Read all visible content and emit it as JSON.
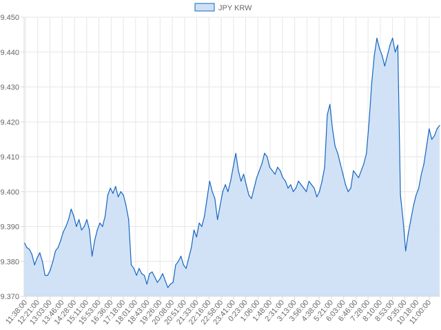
{
  "chart_data": {
    "type": "area",
    "title": "",
    "xlabel": "",
    "ylabel": "",
    "legend": {
      "position": "top-center",
      "entries": [
        "JPY KRW"
      ]
    },
    "grid": true,
    "ylim": [
      9.37,
      9.45
    ],
    "y_ticks": [
      "9.450",
      "9.440",
      "9.430",
      "9.420",
      "9.410",
      "9.400",
      "9.390",
      "9.380",
      "9.370"
    ],
    "x_ticks": [
      "11:38:00",
      "12:21:00",
      "13:03:00",
      "13:46:00",
      "14:28:00",
      "15:11:00",
      "15:53:00",
      "16:36:00",
      "17:18:00",
      "18:01:00",
      "18:43:00",
      "19:26:00",
      "20:08:00",
      "20:51:00",
      "21:33:00",
      "22:16:00",
      "22:58:00",
      "23:41:00",
      "0:23:00",
      "1:06:00",
      "1:48:00",
      "2:31:00",
      "3:13:00",
      "3:56:00",
      "4:38:00",
      "5:21:00",
      "6:03:00",
      "6:46:00",
      "7:28:00",
      "8:10:00",
      "8:53:00",
      "9:35:00",
      "10:18:00",
      "11:00:00"
    ],
    "colors": {
      "line": "#1565c0",
      "fill": "#cfe0f5",
      "grid": "#e6e6e6",
      "axis": "#d9d9d9"
    },
    "series": [
      {
        "name": "JPY KRW",
        "values": [
          9.3855,
          9.384,
          9.3835,
          9.382,
          9.379,
          9.381,
          9.3825,
          9.38,
          9.376,
          9.376,
          9.3775,
          9.38,
          9.383,
          9.384,
          9.386,
          9.3885,
          9.39,
          9.392,
          9.395,
          9.393,
          9.39,
          9.392,
          9.389,
          9.39,
          9.392,
          9.389,
          9.3815,
          9.386,
          9.389,
          9.391,
          9.39,
          9.393,
          9.399,
          9.401,
          9.3995,
          9.4015,
          9.3985,
          9.4,
          9.399,
          9.396,
          9.392,
          9.379,
          9.378,
          9.376,
          9.378,
          9.3765,
          9.376,
          9.3735,
          9.3765,
          9.377,
          9.3755,
          9.374,
          9.375,
          9.3765,
          9.3745,
          9.3725,
          9.3735,
          9.374,
          9.379,
          9.38,
          9.3815,
          9.379,
          9.378,
          9.381,
          9.384,
          9.389,
          9.387,
          9.391,
          9.39,
          9.393,
          9.398,
          9.403,
          9.4,
          9.398,
          9.392,
          9.396,
          9.4,
          9.402,
          9.4,
          9.403,
          9.407,
          9.411,
          9.406,
          9.403,
          9.405,
          9.402,
          9.399,
          9.398,
          9.401,
          9.404,
          9.406,
          9.408,
          9.411,
          9.41,
          9.407,
          9.406,
          9.405,
          9.407,
          9.406,
          9.404,
          9.403,
          9.401,
          9.402,
          9.4,
          9.401,
          9.403,
          9.402,
          9.401,
          9.4,
          9.403,
          9.402,
          9.401,
          9.3985,
          9.4,
          9.403,
          9.407,
          9.422,
          9.425,
          9.418,
          9.413,
          9.411,
          9.408,
          9.405,
          9.402,
          9.4,
          9.401,
          9.406,
          9.405,
          9.404,
          9.406,
          9.408,
          9.411,
          9.42,
          9.431,
          9.439,
          9.444,
          9.441,
          9.439,
          9.436,
          9.439,
          9.442,
          9.444,
          9.44,
          9.442,
          9.399,
          9.392,
          9.383,
          9.388,
          9.392,
          9.396,
          9.399,
          9.401,
          9.405,
          9.408,
          9.413,
          9.418,
          9.415,
          9.416,
          9.418,
          9.419
        ]
      }
    ]
  }
}
